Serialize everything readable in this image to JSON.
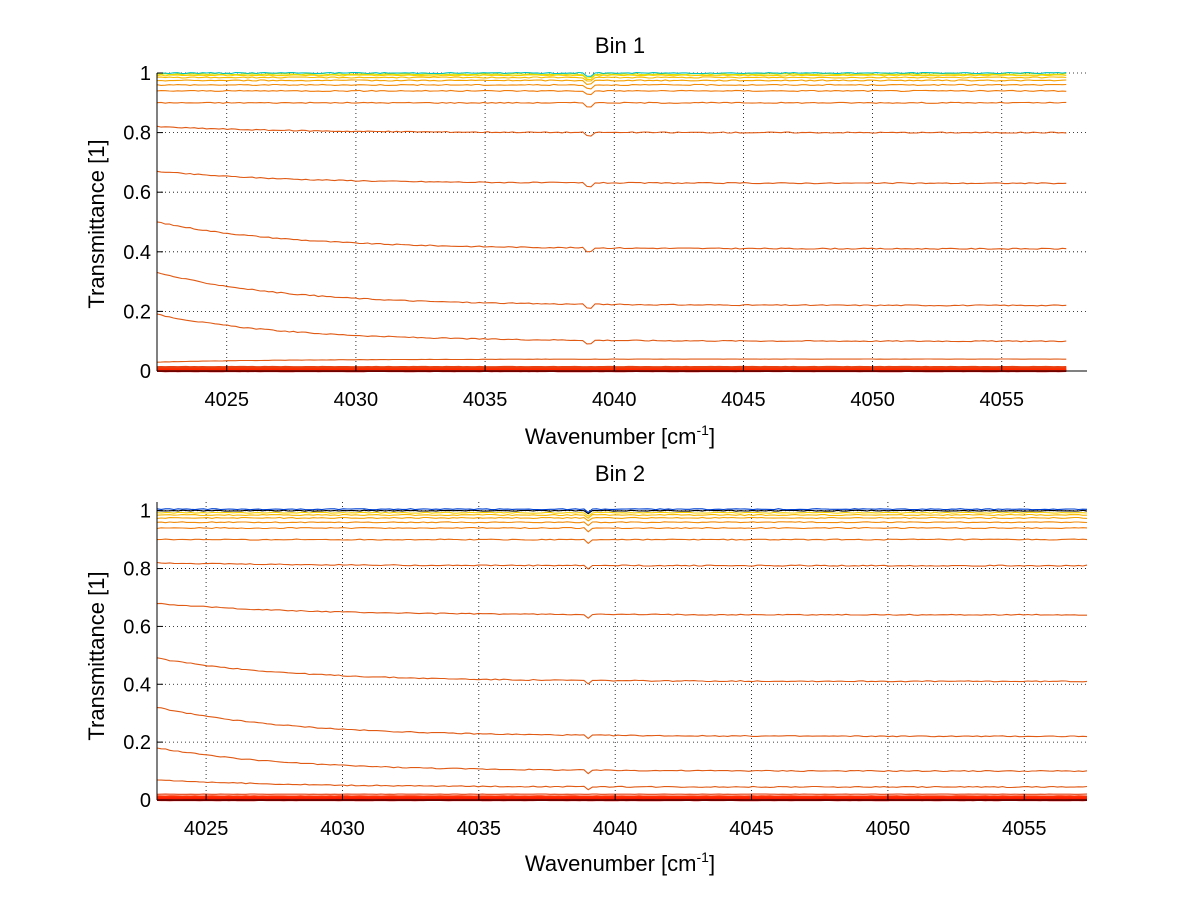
{
  "chart_data": [
    {
      "type": "line",
      "title": "Bin 1",
      "xlabel": "Wavenumber [cm",
      "xlabel_sup": "-1",
      "xlabel_end": "]",
      "ylabel": "Transmittance [1]",
      "xlim": [
        4022.3,
        4058.3
      ],
      "ylim": [
        0,
        1
      ],
      "grid": true,
      "x_ticks": [
        4025,
        4030,
        4035,
        4040,
        4045,
        4050,
        4055
      ],
      "x_tick_labels": [
        "4025",
        "4030",
        "4035",
        "4040",
        "4045",
        "4050",
        "4055"
      ],
      "y_ticks": [
        0,
        0.2,
        0.4,
        0.6,
        0.8,
        1
      ],
      "y_tick_labels": [
        "0",
        "0.2",
        "0.4",
        "0.6",
        "0.8",
        "1"
      ],
      "x_start": 4022.3,
      "x_end": 4057.5,
      "series": [
        {
          "name": "s1",
          "color": "#e00000",
          "start": 0.0,
          "end": 0.0
        },
        {
          "name": "s2",
          "color": "#ff1a00",
          "start": 0.004,
          "end": 0.004
        },
        {
          "name": "s3",
          "color": "#ff2e00",
          "start": 0.008,
          "end": 0.008
        },
        {
          "name": "s4",
          "color": "#e84010",
          "start": 0.013,
          "end": 0.013
        },
        {
          "name": "s5",
          "color": "#e05a14",
          "start": 0.03,
          "end": 0.04
        },
        {
          "name": "s6",
          "color": "#e05a14",
          "start": 0.19,
          "end": 0.1
        },
        {
          "name": "s7",
          "color": "#e05a14",
          "start": 0.33,
          "end": 0.22
        },
        {
          "name": "s8",
          "color": "#e05a14",
          "start": 0.5,
          "end": 0.41
        },
        {
          "name": "s9",
          "color": "#e05a14",
          "start": 0.67,
          "end": 0.63
        },
        {
          "name": "s10",
          "color": "#e05a14",
          "start": 0.82,
          "end": 0.8
        },
        {
          "name": "s11",
          "color": "#e86a10",
          "start": 0.9,
          "end": 0.9
        },
        {
          "name": "s12",
          "color": "#f07a0a",
          "start": 0.94,
          "end": 0.94
        },
        {
          "name": "s13",
          "color": "#f08a08",
          "start": 0.96,
          "end": 0.96
        },
        {
          "name": "s14",
          "color": "#f4a000",
          "start": 0.975,
          "end": 0.975
        },
        {
          "name": "s15",
          "color": "#f8b800",
          "start": 0.985,
          "end": 0.985
        },
        {
          "name": "s16",
          "color": "#f8d000",
          "start": 0.992,
          "end": 0.992
        },
        {
          "name": "s17",
          "color": "#e0e000",
          "start": 0.996,
          "end": 0.996
        },
        {
          "name": "s18",
          "color": "#00c0c0",
          "start": 1.0,
          "end": 1.0
        }
      ]
    },
    {
      "type": "line",
      "title": "Bin 2",
      "xlabel": "Wavenumber [cm",
      "xlabel_sup": "-1",
      "xlabel_end": "]",
      "ylabel": "Transmittance [1]",
      "xlim": [
        4023.2,
        4057.3
      ],
      "ylim": [
        0,
        1.03
      ],
      "grid": true,
      "x_ticks": [
        4025,
        4030,
        4035,
        4040,
        4045,
        4050,
        4055
      ],
      "x_tick_labels": [
        "4025",
        "4030",
        "4035",
        "4040",
        "4045",
        "4050",
        "4055"
      ],
      "y_ticks": [
        0,
        0.2,
        0.4,
        0.6,
        0.8,
        1
      ],
      "y_tick_labels": [
        "0",
        "0.2",
        "0.4",
        "0.6",
        "0.8",
        "1"
      ],
      "x_start": 4023.2,
      "x_end": 4057.3,
      "series": [
        {
          "name": "s1",
          "color": "#e00000",
          "start": 0.0,
          "end": 0.0
        },
        {
          "name": "s2",
          "color": "#ff1a00",
          "start": 0.006,
          "end": 0.006
        },
        {
          "name": "s3",
          "color": "#ff2e00",
          "start": 0.012,
          "end": 0.012
        },
        {
          "name": "s4",
          "color": "#e84010",
          "start": 0.02,
          "end": 0.02
        },
        {
          "name": "s5",
          "color": "#e05a14",
          "start": 0.07,
          "end": 0.045
        },
        {
          "name": "s6",
          "color": "#e05a14",
          "start": 0.18,
          "end": 0.1
        },
        {
          "name": "s7",
          "color": "#e05a14",
          "start": 0.32,
          "end": 0.22
        },
        {
          "name": "s8",
          "color": "#e05a14",
          "start": 0.49,
          "end": 0.41
        },
        {
          "name": "s9",
          "color": "#e05a14",
          "start": 0.68,
          "end": 0.64
        },
        {
          "name": "s10",
          "color": "#e05a14",
          "start": 0.82,
          "end": 0.81
        },
        {
          "name": "s11",
          "color": "#e86a10",
          "start": 0.9,
          "end": 0.9
        },
        {
          "name": "s12",
          "color": "#f07a0a",
          "start": 0.94,
          "end": 0.94
        },
        {
          "name": "s13",
          "color": "#f08a08",
          "start": 0.96,
          "end": 0.96
        },
        {
          "name": "s14",
          "color": "#f4a000",
          "start": 0.975,
          "end": 0.975
        },
        {
          "name": "s15",
          "color": "#f8b800",
          "start": 0.985,
          "end": 0.985
        },
        {
          "name": "s16",
          "color": "#f8d000",
          "start": 0.993,
          "end": 0.993
        },
        {
          "name": "s17",
          "color": "#000000",
          "start": 1.0,
          "end": 1.0
        },
        {
          "name": "s18",
          "color": "#0040d0",
          "start": 1.005,
          "end": 1.005
        }
      ]
    }
  ]
}
